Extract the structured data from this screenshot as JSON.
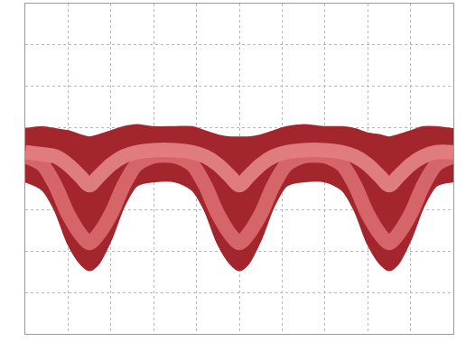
{
  "chart_data": {
    "type": "line",
    "x": [
      -5,
      -4.6,
      -4.3,
      -4.0,
      -3.7,
      -3.5,
      -3.3,
      -3.0,
      -2.7,
      -2.4,
      -2.0,
      -1.5,
      -1.1,
      -0.8,
      -0.5,
      -0.2,
      0,
      0.2,
      0.5,
      0.8,
      1.1,
      1.5,
      2.0,
      2.4,
      2.7,
      3.0,
      3.3,
      3.5,
      3.7,
      4.0,
      4.3,
      4.6,
      5
    ],
    "series": [
      {
        "color": "#a3262d",
        "values": [
          -0.3,
          -0.5,
          -1.0,
          -1.8,
          -2.3,
          -2.45,
          -2.3,
          -1.7,
          -0.9,
          -0.4,
          -0.3,
          -0.3,
          -0.5,
          -1.0,
          -1.8,
          -2.3,
          -2.45,
          -2.3,
          -1.7,
          -0.9,
          -0.4,
          -0.3,
          -0.3,
          -0.5,
          -1.0,
          -1.8,
          -2.3,
          -2.45,
          -2.3,
          -1.7,
          -0.9,
          -0.4,
          -0.3
        ]
      },
      {
        "color": "#a3262d",
        "values": [
          0.95,
          1.0,
          0.95,
          0.9,
          0.8,
          0.75,
          0.8,
          0.9,
          1.0,
          1.05,
          1.0,
          1.0,
          1.0,
          0.9,
          0.8,
          0.75,
          0.75,
          0.75,
          0.8,
          0.9,
          1.0,
          1.05,
          1.0,
          1.0,
          0.95,
          0.85,
          0.8,
          0.75,
          0.8,
          0.9,
          1.0,
          1.0,
          0.95
        ]
      },
      {
        "color": "#f39a9a",
        "values": [
          0.4,
          0.35,
          0.3,
          0.1,
          -0.2,
          -0.4,
          -0.2,
          0.1,
          0.3,
          0.4,
          0.45,
          0.45,
          0.4,
          0.3,
          0.1,
          -0.2,
          -0.4,
          -0.2,
          0.1,
          0.3,
          0.4,
          0.45,
          0.45,
          0.4,
          0.3,
          0.1,
          -0.2,
          -0.4,
          -0.2,
          0.1,
          0.3,
          0.4,
          0.4
        ]
      },
      {
        "color": "#e57b7e",
        "values": [
          0.3,
          0.1,
          -0.4,
          -1.1,
          -1.6,
          -1.8,
          -1.6,
          -1.1,
          -0.4,
          0.1,
          0.3,
          0.3,
          0.1,
          -0.4,
          -1.1,
          -1.6,
          -1.8,
          -1.6,
          -1.1,
          -0.4,
          0.1,
          0.3,
          0.3,
          0.1,
          -0.4,
          -1.1,
          -1.6,
          -1.8,
          -1.6,
          -1.1,
          -0.4,
          0.1,
          0.3
        ]
      }
    ],
    "xlim": [
      -5,
      5
    ],
    "xticks": [
      -5,
      -4,
      -3,
      -2,
      -1,
      0,
      1,
      2,
      3,
      4,
      5
    ],
    "ylim": [
      -4,
      4
    ],
    "yticks": [
      -4,
      -3,
      -2,
      -1,
      0,
      1,
      2,
      3,
      4
    ],
    "grid": true,
    "tick_labels": false
  }
}
